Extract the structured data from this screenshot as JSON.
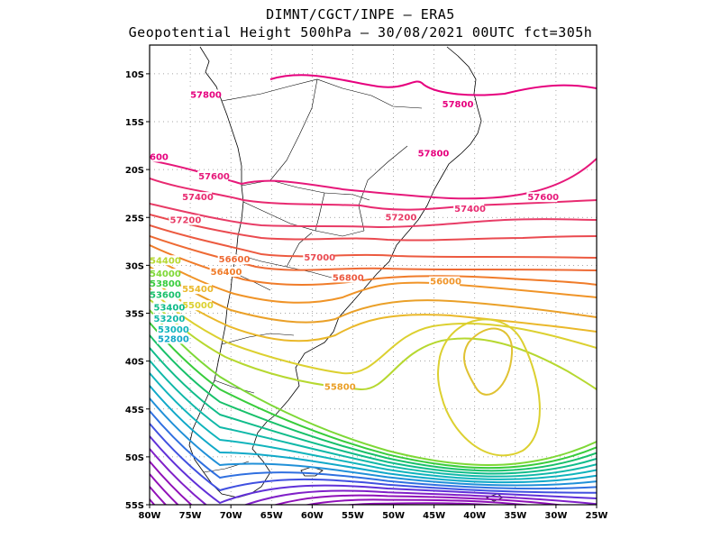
{
  "header": {
    "title_line1": "DIMNT/CGCT/INPE — ERA5",
    "title_line2": "Geopotential Height 500hPa — 30/08/2021 00UTC fct=305h"
  },
  "map": {
    "lon_range": [
      -80,
      -25
    ],
    "lat_range": [
      -55,
      -7
    ],
    "x_ticks": [
      {
        "lon": -80,
        "label": "80W"
      },
      {
        "lon": -75,
        "label": "75W"
      },
      {
        "lon": -70,
        "label": "70W"
      },
      {
        "lon": -65,
        "label": "65W"
      },
      {
        "lon": -60,
        "label": "60W"
      },
      {
        "lon": -55,
        "label": "55W"
      },
      {
        "lon": -50,
        "label": "50W"
      },
      {
        "lon": -45,
        "label": "45W"
      },
      {
        "lon": -40,
        "label": "40W"
      },
      {
        "lon": -35,
        "label": "35W"
      },
      {
        "lon": -30,
        "label": "30W"
      },
      {
        "lon": -25,
        "label": "25W"
      }
    ],
    "y_ticks": [
      {
        "lat": -10,
        "label": "10S"
      },
      {
        "lat": -15,
        "label": "15S"
      },
      {
        "lat": -20,
        "label": "20S"
      },
      {
        "lat": -25,
        "label": "25S"
      },
      {
        "lat": -30,
        "label": "30S"
      },
      {
        "lat": -35,
        "label": "35S"
      },
      {
        "lat": -40,
        "label": "40S"
      },
      {
        "lat": -45,
        "label": "45S"
      },
      {
        "lat": -50,
        "label": "50S"
      },
      {
        "lat": -55,
        "label": "55S"
      }
    ],
    "grid": true,
    "contour_labels": [
      {
        "text": "57800",
        "lon": -75,
        "lat": -12.5,
        "color": "#e6007e"
      },
      {
        "text": "57800",
        "lon": -44,
        "lat": -13.5,
        "color": "#e6007e"
      },
      {
        "text": "57800",
        "lon": -47,
        "lat": -18.6,
        "color": "#e6007e"
      },
      {
        "text": "600",
        "lon": -80,
        "lat": -19,
        "color": "#e6007e"
      },
      {
        "text": "57600",
        "lon": -74,
        "lat": -21,
        "color": "#e6187a"
      },
      {
        "text": "57600",
        "lon": -33.5,
        "lat": -23.2,
        "color": "#e6187a"
      },
      {
        "text": "57400",
        "lon": -76,
        "lat": -23.2,
        "color": "#e82a70"
      },
      {
        "text": "57400",
        "lon": -42.5,
        "lat": -24.4,
        "color": "#e82a70"
      },
      {
        "text": "57200",
        "lon": -77.5,
        "lat": -25.6,
        "color": "#e83c66"
      },
      {
        "text": "57200",
        "lon": -51,
        "lat": -25.3,
        "color": "#e83c66"
      },
      {
        "text": "57000",
        "lon": -61,
        "lat": -29.5,
        "color": "#ea4a50"
      },
      {
        "text": "56800",
        "lon": -57.5,
        "lat": -31.6,
        "color": "#ec5a40"
      },
      {
        "text": "56600",
        "lon": -71.5,
        "lat": -29.7,
        "color": "#ee6a34"
      },
      {
        "text": "56400",
        "lon": -72.5,
        "lat": -31.0,
        "color": "#f07c2a"
      },
      {
        "text": "56000",
        "lon": -45.5,
        "lat": -32.0,
        "color": "#f09428"
      },
      {
        "text": "55800",
        "lon": -58.5,
        "lat": -43.0,
        "color": "#eaa028"
      },
      {
        "text": "55400",
        "lon": -76,
        "lat": -32.8,
        "color": "#eab82a"
      },
      {
        "text": "55000",
        "lon": -76,
        "lat": -34.5,
        "color": "#dcd030"
      },
      {
        "text": "54400",
        "lon": -80,
        "lat": -29.8,
        "color": "#b6d830"
      },
      {
        "text": "54000",
        "lon": -80,
        "lat": -31.2,
        "color": "#7ed836"
      },
      {
        "text": "53800",
        "lon": -80,
        "lat": -32.2,
        "color": "#38cc3c"
      },
      {
        "text": "53600",
        "lon": -80,
        "lat": -33.4,
        "color": "#18c06a"
      },
      {
        "text": "53400",
        "lon": -79.5,
        "lat": -34.7,
        "color": "#10bc8a"
      },
      {
        "text": "53200",
        "lon": -79.5,
        "lat": -35.9,
        "color": "#10b8a8"
      },
      {
        "text": "53000",
        "lon": -79,
        "lat": -37.0,
        "color": "#10b4bc"
      },
      {
        "text": "52800",
        "lon": -79,
        "lat": -38.0,
        "color": "#10a8c8"
      }
    ]
  }
}
